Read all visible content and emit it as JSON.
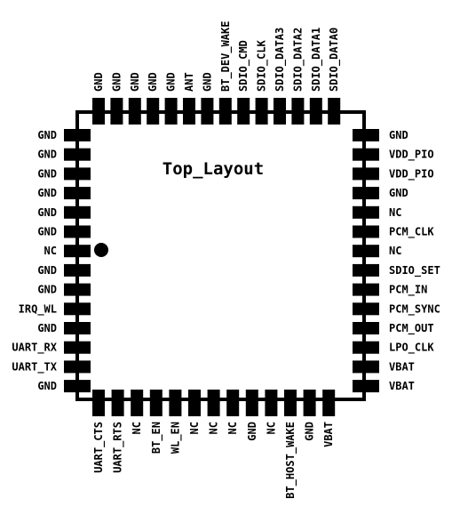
{
  "diagram": {
    "title": "Top_Layout",
    "colors": {
      "ink": "#000000",
      "background": "#ffffff"
    },
    "pin1_marker": "filled-circle-dot",
    "top_pins": [
      "GND",
      "GND",
      "GND",
      "GND",
      "GND",
      "ANT",
      "GND",
      "BT_DEV_WAKE",
      "SDIO_CMD",
      "SDIO_CLK",
      "SDIO_DATA3",
      "SDIO_DATA2",
      "SDIO_DATA1",
      "SDIO_DATA0"
    ],
    "left_pins": [
      "GND",
      "GND",
      "GND",
      "GND",
      "GND",
      "GND",
      "NC",
      "GND",
      "GND",
      "IRQ_WL",
      "GND",
      "UART_RX",
      "UART_TX",
      "GND"
    ],
    "right_pins": [
      "GND",
      "VDD_PIO",
      "VDD_PIO",
      "GND",
      "NC",
      "PCM_CLK",
      "NC",
      "SDIO_SET",
      "PCM_IN",
      "PCM_SYNC",
      "PCM_OUT",
      "LPO_CLK",
      "VBAT",
      "VBAT"
    ],
    "bottom_pins": [
      "UART_CTS",
      "UART_RTS",
      "NC",
      "BT_EN",
      "WL_EN",
      "NC",
      "NC",
      "NC",
      "GND",
      "NC",
      "BT_HOST_WAKE",
      "GND",
      "VBAT"
    ]
  }
}
